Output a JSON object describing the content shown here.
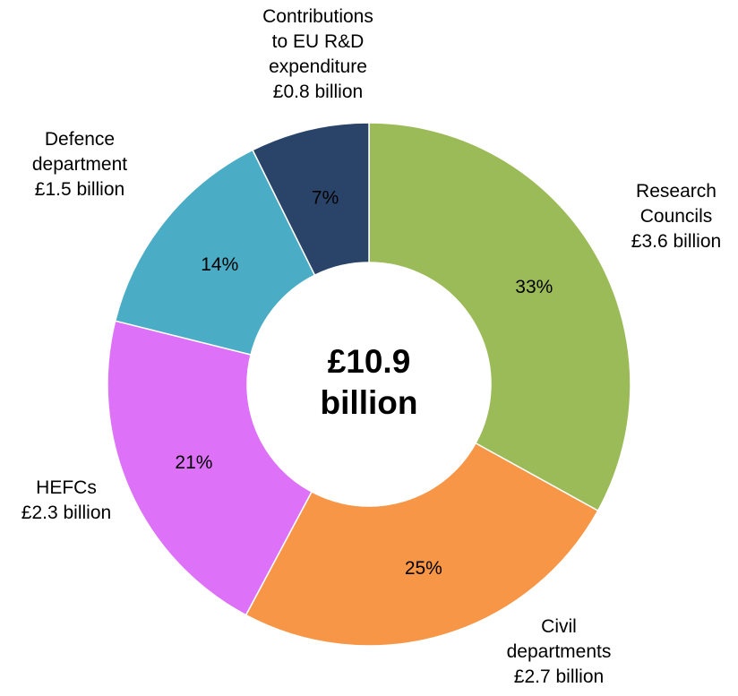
{
  "chart_data": {
    "type": "pie",
    "donut": true,
    "center_text": [
      "£10.9",
      "billion"
    ],
    "categories": [
      "Research Councils",
      "Civil departments",
      "HEFCs",
      "Defence department",
      "Contributions to EU R&D expenditure"
    ],
    "values": [
      3.6,
      2.7,
      2.3,
      1.5,
      0.8
    ],
    "unit": "£ billion",
    "slices": [
      {
        "name": "Research Councils",
        "value": 3.6,
        "percent_label": "33%",
        "label_lines": [
          "Research",
          "Councils",
          "£3.6 billion"
        ],
        "color": "#9BBB59"
      },
      {
        "name": "Civil departments",
        "value": 2.7,
        "percent_label": "25%",
        "label_lines": [
          "Civil",
          "departments",
          "£2.7 billion"
        ],
        "color": "#F79646"
      },
      {
        "name": "HEFCs",
        "value": 2.3,
        "percent_label": "21%",
        "label_lines": [
          "HEFCs",
          "£2.3 billion"
        ],
        "color": "#DD72F9"
      },
      {
        "name": "Defence department",
        "value": 1.5,
        "percent_label": "14%",
        "label_lines": [
          "Defence",
          "department",
          "£1.5 billion"
        ],
        "color": "#4BACC6"
      },
      {
        "name": "Contributions to EU R&D expenditure",
        "value": 0.8,
        "percent_label": "7%",
        "label_lines": [
          "Contributions",
          "to EU R&D",
          "expenditure",
          "£0.8 billion"
        ],
        "color": "#2A4469"
      }
    ],
    "start_angle": "12 o'clock",
    "direction": "clockwise",
    "legend": "none"
  }
}
